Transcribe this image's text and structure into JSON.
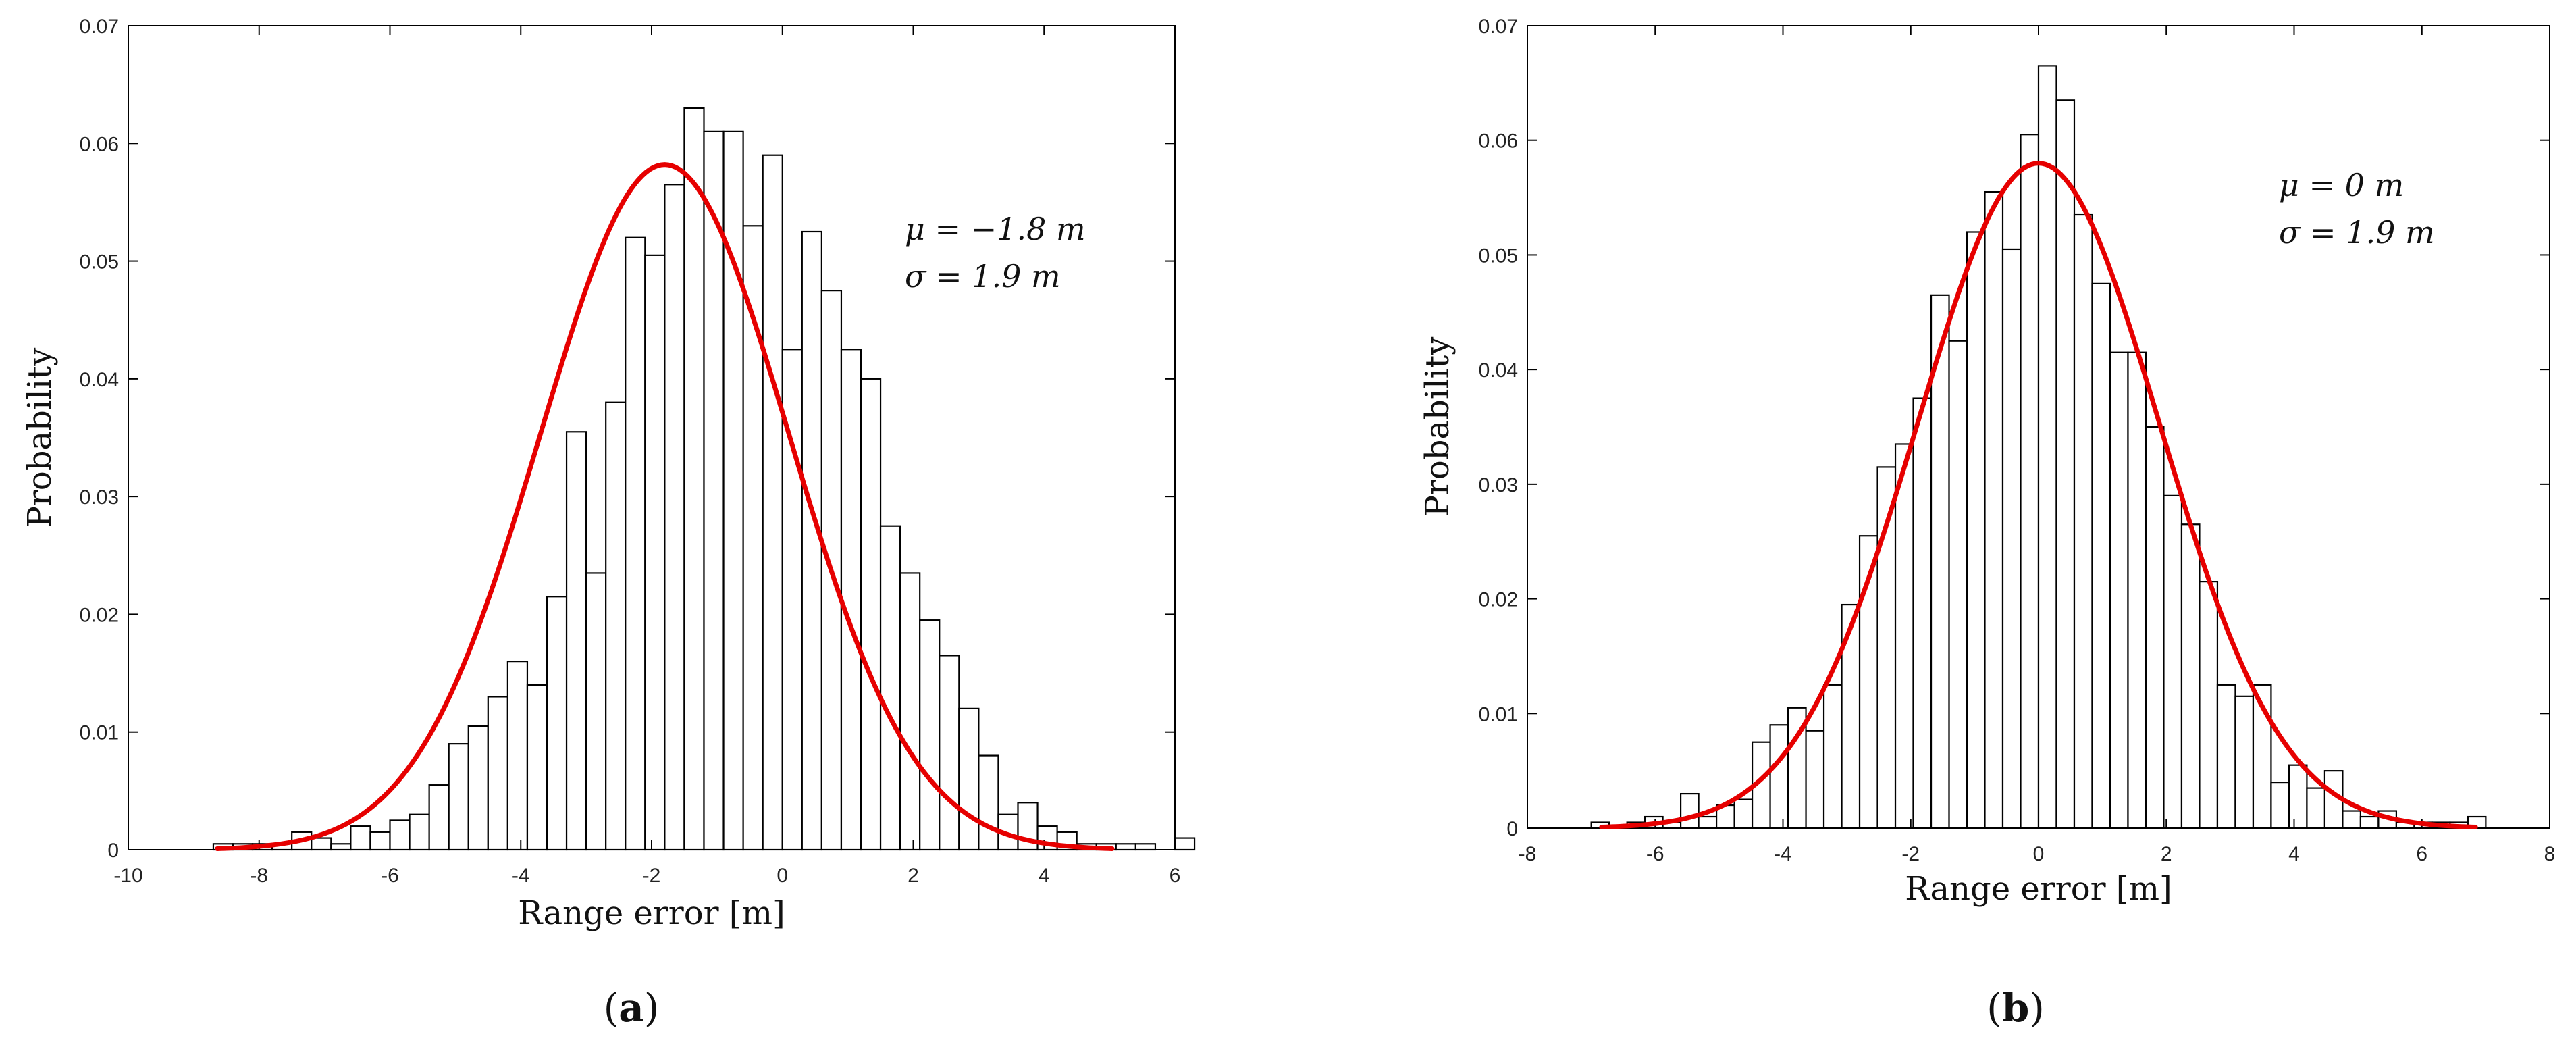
{
  "chart_data": [
    {
      "type": "bar",
      "panel": "a",
      "caption": "a",
      "xlabel": "Range error [m]",
      "ylabel": "Probability",
      "xlim": [
        -10,
        6
      ],
      "ylim": [
        0,
        0.07
      ],
      "x_ticks": [
        "-10",
        "-8",
        "-6",
        "-4",
        "-2",
        "0",
        "2",
        "4",
        "6"
      ],
      "y_ticks": [
        "0",
        "0.01",
        "0.02",
        "0.03",
        "0.04",
        "0.05",
        "0.06",
        "0.07"
      ],
      "annotation": [
        "μ = −1.8 m",
        "σ = 1.9 m"
      ],
      "bin_start": -8.7,
      "bin_width": 0.3,
      "values": [
        0.0005,
        0.0005,
        0.0005,
        0.0005,
        0.0015,
        0.001,
        0.0005,
        0.002,
        0.0015,
        0.0025,
        0.003,
        0.0055,
        0.009,
        0.0105,
        0.013,
        0.016,
        0.014,
        0.0215,
        0.0355,
        0.0235,
        0.038,
        0.052,
        0.0505,
        0.0565,
        0.063,
        0.061,
        0.061,
        0.053,
        0.059,
        0.0425,
        0.0525,
        0.0475,
        0.0425,
        0.04,
        0.0275,
        0.0235,
        0.0195,
        0.0165,
        0.012,
        0.008,
        0.003,
        0.004,
        0.002,
        0.0015,
        0.0005,
        0.0005,
        0.0005,
        0.0005,
        0.0,
        0.001
      ],
      "fit": {
        "name": "Normal fit",
        "mu": -1.8,
        "sigma": 1.9,
        "peak": 0.0582,
        "color": "#e60000"
      }
    },
    {
      "type": "bar",
      "panel": "b",
      "caption": "b",
      "xlabel": "Range error [m]",
      "ylabel": "Probability",
      "xlim": [
        -8,
        8
      ],
      "ylim": [
        0,
        0.07
      ],
      "x_ticks": [
        "-8",
        "-6",
        "-4",
        "-2",
        "0",
        "2",
        "4",
        "6",
        "8"
      ],
      "y_ticks": [
        "0",
        "0.01",
        "0.02",
        "0.03",
        "0.04",
        "0.05",
        "0.06",
        "0.07"
      ],
      "annotation": [
        "μ = 0 m",
        "σ = 1.9 m"
      ],
      "bin_start": -7,
      "bin_width": 0.28,
      "values": [
        0.0005,
        0.0,
        0.0005,
        0.001,
        0.0005,
        0.003,
        0.001,
        0.002,
        0.0025,
        0.0075,
        0.009,
        0.0105,
        0.0085,
        0.0125,
        0.0195,
        0.0255,
        0.0315,
        0.0335,
        0.0375,
        0.0465,
        0.0425,
        0.052,
        0.0555,
        0.0505,
        0.0605,
        0.0665,
        0.0635,
        0.0535,
        0.0475,
        0.0415,
        0.0415,
        0.035,
        0.029,
        0.0265,
        0.0215,
        0.0125,
        0.0115,
        0.0125,
        0.004,
        0.0055,
        0.0035,
        0.005,
        0.0015,
        0.001,
        0.0015,
        0.0005,
        0.0005,
        0.0005,
        0.0005,
        0.001
      ],
      "fit": {
        "name": "Normal fit",
        "mu": 0,
        "sigma": 1.9,
        "peak": 0.058,
        "color": "#e60000"
      }
    }
  ]
}
